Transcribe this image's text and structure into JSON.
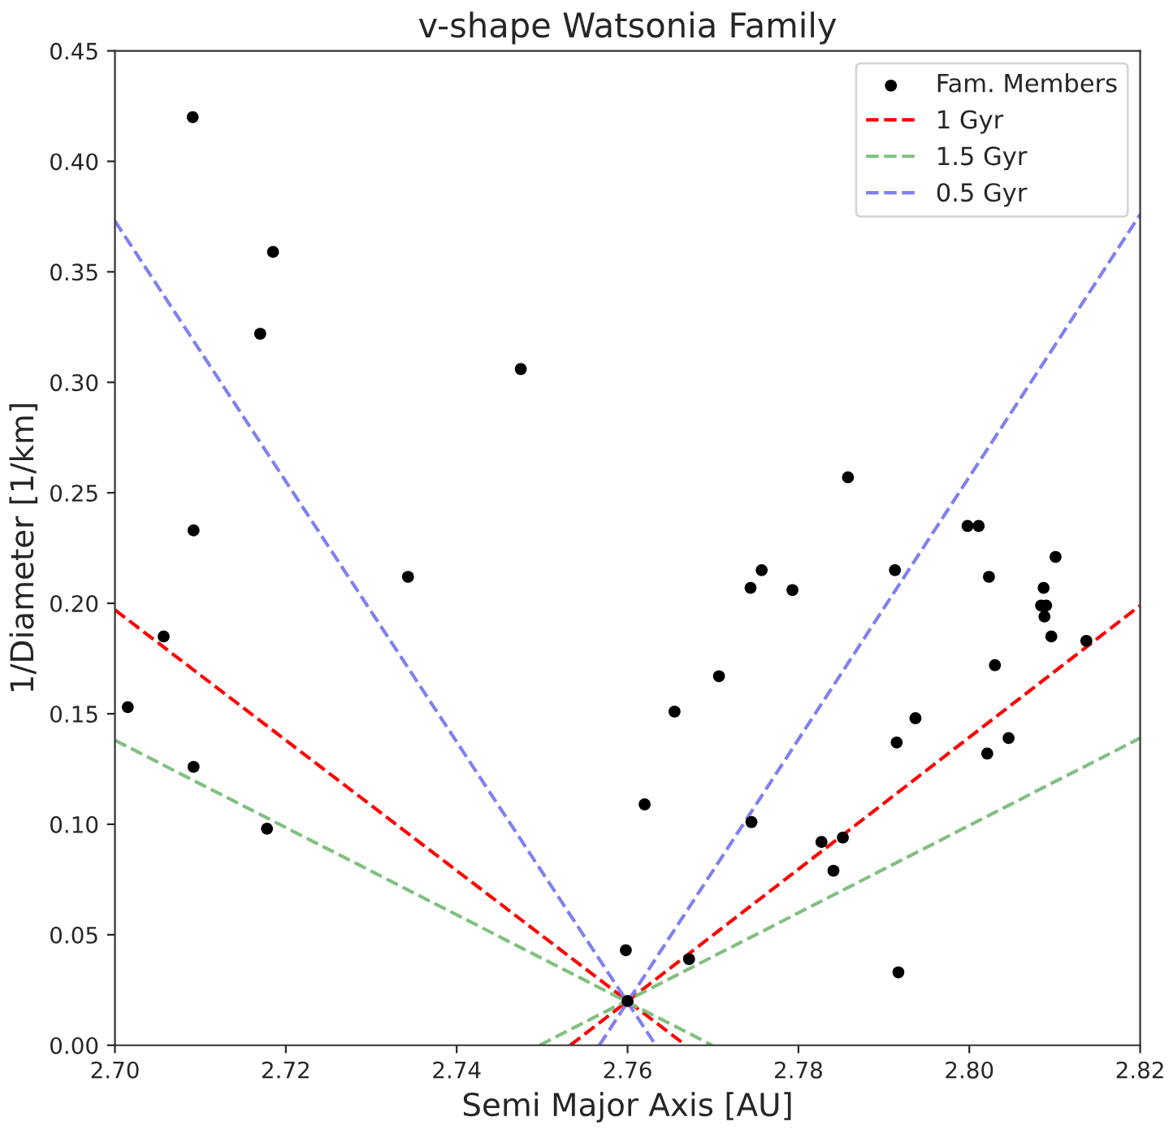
{
  "chart_data": {
    "type": "scatter",
    "title": "v-shape Watsonia Family",
    "xlabel": "Semi Major Axis [AU]",
    "ylabel": "1/Diameter [1/km]",
    "xlim": [
      2.7,
      2.82
    ],
    "xticks": [
      {
        "value": 2.7,
        "label": "2.70"
      },
      {
        "value": 2.72,
        "label": "2.72"
      },
      {
        "value": 2.74,
        "label": "2.74"
      },
      {
        "value": 2.76,
        "label": "2.76"
      },
      {
        "value": 2.78,
        "label": "2.78"
      },
      {
        "value": 2.8,
        "label": "2.80"
      },
      {
        "value": 2.82,
        "label": "2.82"
      }
    ],
    "ylim": [
      0,
      0.45
    ],
    "yticks": [
      {
        "value": 0,
        "label": "0.00"
      },
      {
        "value": 0.05,
        "label": "0.05"
      },
      {
        "value": 0.1,
        "label": "0.10"
      },
      {
        "value": 0.15,
        "label": "0.15"
      },
      {
        "value": 0.2,
        "label": "0.20"
      },
      {
        "value": 0.25,
        "label": "0.25"
      },
      {
        "value": 0.3,
        "label": "0.30"
      },
      {
        "value": 0.35,
        "label": "0.35"
      },
      {
        "value": 0.4,
        "label": "0.40"
      },
      {
        "value": 0.45,
        "label": "0.45"
      }
    ],
    "legend": "top right",
    "grid": false,
    "series": [
      {
        "name": "Fam. Members",
        "marker": "circle",
        "color": "#000000",
        "x": [
          2.7015,
          2.7057,
          2.7091,
          2.7092,
          2.7092,
          2.717,
          2.7185,
          2.7178,
          2.7343,
          2.7475,
          2.76,
          2.7598,
          2.762,
          2.7655,
          2.7672,
          2.7707,
          2.7745,
          2.7744,
          2.7757,
          2.7793,
          2.7858,
          2.7827,
          2.7841,
          2.7852,
          2.7913,
          2.7915,
          2.7917,
          2.7937,
          2.7998,
          2.8011,
          2.8021,
          2.8023,
          2.803,
          2.8046,
          2.8084,
          2.8087,
          2.809,
          2.8088,
          2.8096,
          2.8101,
          2.8137
        ],
        "values": [
          0.153,
          0.185,
          0.42,
          0.233,
          0.126,
          0.322,
          0.359,
          0.098,
          0.212,
          0.306,
          0.02,
          0.043,
          0.109,
          0.151,
          0.039,
          0.167,
          0.101,
          0.207,
          0.215,
          0.206,
          0.257,
          0.092,
          0.079,
          0.094,
          0.215,
          0.137,
          0.033,
          0.148,
          0.235,
          0.235,
          0.132,
          0.212,
          0.172,
          0.139,
          0.199,
          0.207,
          0.199,
          0.194,
          0.185,
          0.221,
          0.183
        ]
      },
      {
        "name": "1 Gyr",
        "type": "line",
        "line_style": "dashed",
        "color": "#ff0000",
        "x": [
          2.7,
          2.7668
        ],
        "values": [
          0.197,
          0
        ]
      },
      {
        "type": "line",
        "line_style": "dashed",
        "color": "#ff0000",
        "x": [
          2.7533,
          2.82
        ],
        "values": [
          0,
          0.199
        ]
      },
      {
        "name": "1.5 Gyr",
        "type": "line",
        "line_style": "dashed",
        "color": "#80c080",
        "x": [
          2.7,
          2.7699
        ],
        "values": [
          0.138,
          0
        ]
      },
      {
        "type": "line",
        "line_style": "dashed",
        "color": "#80c080",
        "x": [
          2.7497,
          2.82
        ],
        "values": [
          0,
          0.139
        ]
      },
      {
        "name": "0.5 Gyr",
        "type": "line",
        "line_style": "dashed",
        "color": "#8080f0",
        "x": [
          2.7,
          2.7633
        ],
        "values": [
          0.373,
          0
        ]
      },
      {
        "type": "line",
        "line_style": "dashed",
        "color": "#8080f0",
        "x": [
          2.7567,
          2.82
        ],
        "values": [
          0,
          0.376
        ]
      }
    ]
  }
}
